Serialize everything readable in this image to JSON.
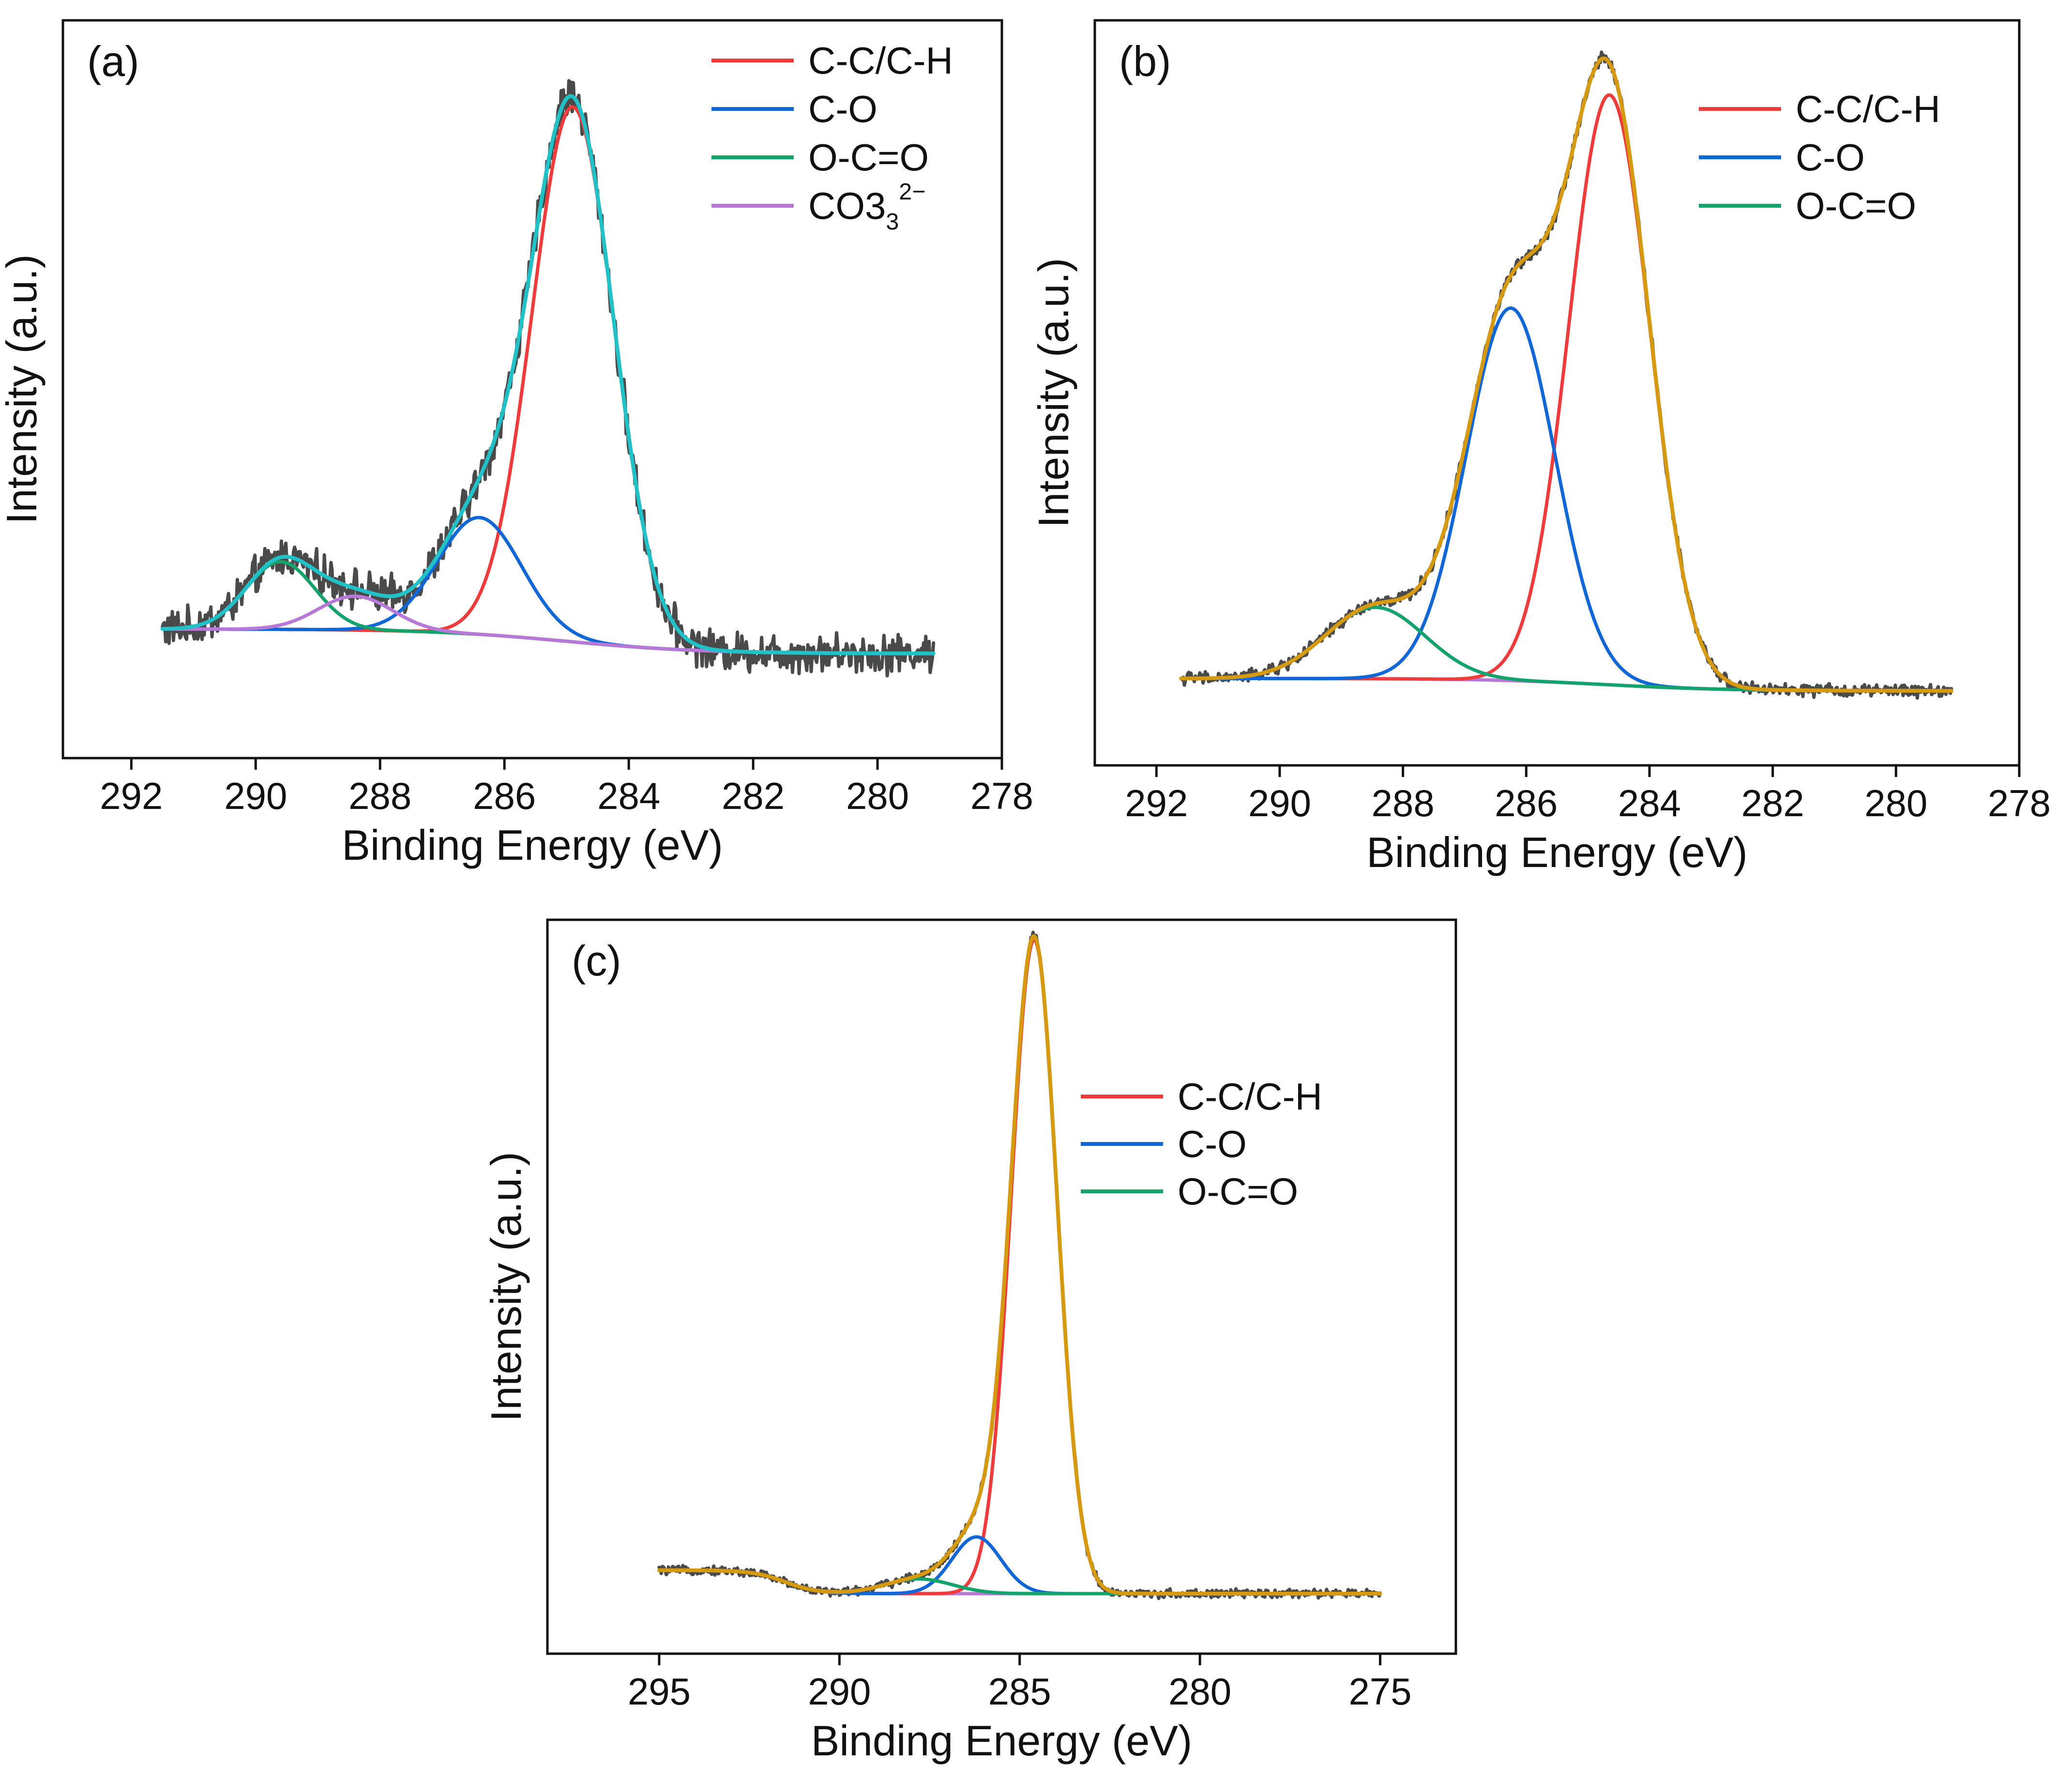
{
  "figure": {
    "panel_labels": [
      "(a)",
      "(b)",
      "(c)"
    ]
  },
  "chart_data": [
    {
      "panel": "(a)",
      "type": "line",
      "xlabel": "Binding Energy (eV)",
      "ylabel": "Intensity (a.u.)",
      "xlim": [
        293.1,
        278.0
      ],
      "ylim": [
        -0.12,
        1.08
      ],
      "x_reversed": true,
      "xticks": [
        292,
        290,
        288,
        286,
        284,
        282,
        280,
        278
      ],
      "y_tick_labels": false,
      "grid": false,
      "legend_position": "top-right",
      "x_range": [
        291.5,
        279.1
      ],
      "background": {
        "a": 0.05,
        "b": 0.04,
        "center": 285.0,
        "width": 1.1
      },
      "raw": {
        "name": "raw data",
        "color": "#4a4a4a",
        "noise": 0.025,
        "in_legend": false
      },
      "envelope": {
        "name": "fit envelope",
        "color": "#22c1c8",
        "in_legend": false
      },
      "series": [
        {
          "name": "C-C/C-H",
          "color": "#ee3b3b",
          "center": 284.9,
          "fwhm": 1.55,
          "height": 0.87
        },
        {
          "name": "C-O",
          "color": "#1167d6",
          "center": 286.4,
          "fwhm": 1.6,
          "height": 0.19
        },
        {
          "name": "O-C=O",
          "color": "#14a36b",
          "center": 289.6,
          "fwhm": 1.3,
          "height": 0.11
        },
        {
          "name": "CO3",
          "name_superscript": "2−",
          "color": "#b778d8",
          "center": 288.4,
          "fwhm": 1.4,
          "height": 0.055
        }
      ],
      "baseline": {
        "name": "background",
        "color": "#d69a12",
        "in_legend": false
      }
    },
    {
      "panel": "(b)",
      "type": "line",
      "xlabel": "Binding Energy (eV)",
      "ylabel": "Intensity (a.u.)",
      "xlim": [
        293.0,
        278.0
      ],
      "ylim": [
        -0.12,
        1.08
      ],
      "x_reversed": true,
      "xticks": [
        292,
        290,
        288,
        286,
        284,
        282,
        280,
        278
      ],
      "y_tick_labels": false,
      "grid": false,
      "legend_position": "top-right",
      "x_range": [
        291.6,
        279.1
      ],
      "background": {
        "a": 0.0,
        "b": 0.02,
        "center": 284.7,
        "width": 1.0
      },
      "raw": {
        "name": "raw data",
        "color": "#4a4a4a",
        "noise": 0.008,
        "in_legend": false
      },
      "envelope": {
        "name": "fit envelope",
        "color": "#d69a12",
        "in_legend": false
      },
      "series": [
        {
          "name": "C-C/C-H",
          "color": "#ee3b3b",
          "center": 284.65,
          "fwhm": 1.55,
          "height": 0.95
        },
        {
          "name": "C-O",
          "color": "#1167d6",
          "center": 286.25,
          "fwhm": 1.7,
          "height": 0.6
        },
        {
          "name": "O-C=O",
          "color": "#14a36b",
          "center": 288.45,
          "fwhm": 1.9,
          "height": 0.115
        }
      ],
      "baseline": {
        "name": "background",
        "color": "#b778d8",
        "in_legend": false
      }
    },
    {
      "panel": "(c)",
      "type": "line",
      "xlabel": "Binding Energy (eV)",
      "ylabel": "Intensity (a.u.)",
      "xlim": [
        298.1,
        272.9
      ],
      "ylim": [
        -0.07,
        1.03
      ],
      "x_reversed": true,
      "xticks": [
        295,
        290,
        285,
        280,
        275
      ],
      "y_tick_labels": false,
      "grid": false,
      "legend_position": "top-right",
      "x_range": [
        295.0,
        275.0
      ],
      "background": {
        "a": 0.02,
        "b": 0.035,
        "center": 291.5,
        "width": 0.45
      },
      "raw": {
        "name": "raw data",
        "color": "#4a4a4a",
        "noise": 0.005,
        "in_legend": false
      },
      "envelope": {
        "name": "fit envelope",
        "color": "#d69a12",
        "in_legend": false
      },
      "series": [
        {
          "name": "C-C/C-H",
          "color": "#ee3b3b",
          "center": 284.6,
          "fwhm": 1.5,
          "height": 0.98
        },
        {
          "name": "C-O",
          "color": "#1167d6",
          "center": 286.2,
          "fwhm": 1.6,
          "height": 0.085
        },
        {
          "name": "O-C=O",
          "color": "#14a36b",
          "center": 287.8,
          "fwhm": 2.2,
          "height": 0.022
        }
      ],
      "baseline": {
        "name": "background",
        "color": "#b778d8",
        "in_legend": false
      }
    }
  ]
}
